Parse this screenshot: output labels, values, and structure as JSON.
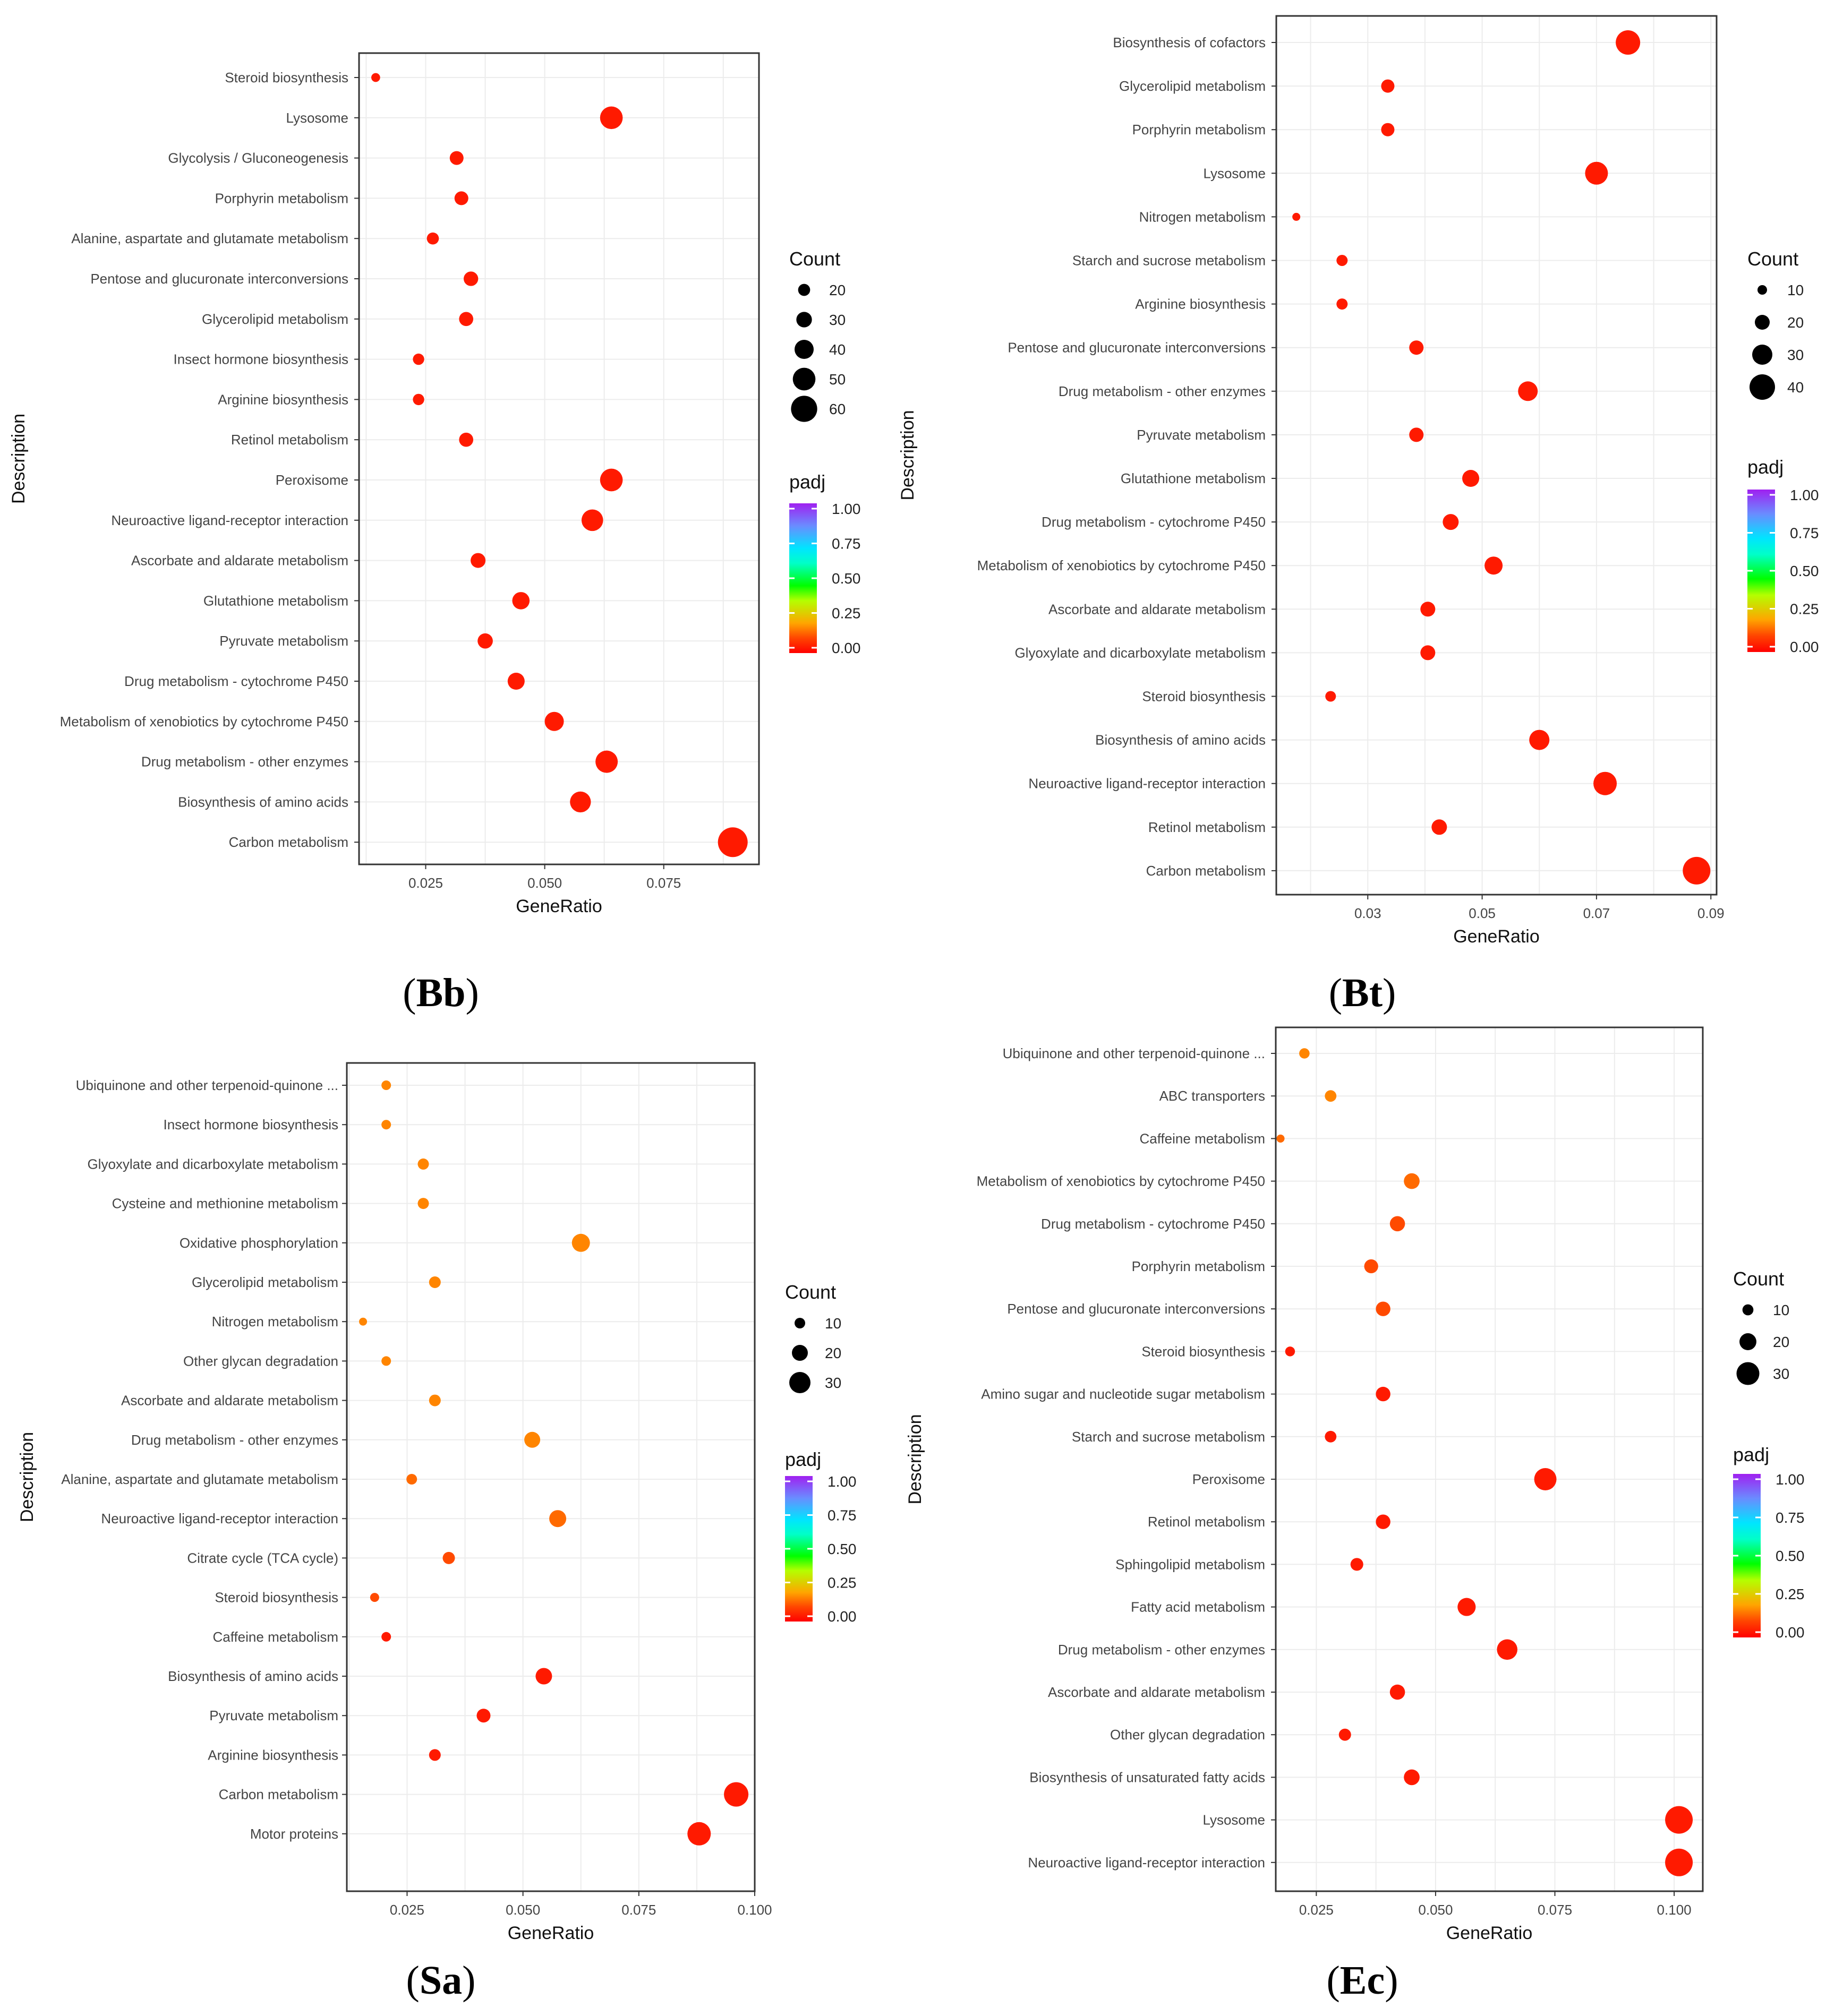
{
  "figure": {
    "xlabel": "GeneRatio",
    "ylabel": "Description",
    "count_legend_title": "Count",
    "padj_legend_title": "padj",
    "padj_ticks": [
      "1.00",
      "0.75",
      "0.50",
      "0.25",
      "0.00"
    ],
    "colors": {
      "low_padj": "#ff0000",
      "mid_padj": "#ff7a00",
      "grid": "#ebebeb",
      "border": "#333333"
    }
  },
  "chart_data": [
    {
      "id": "Bb",
      "type": "scatter",
      "label": "Bb",
      "xlabel": "GeneRatio",
      "ylabel": "Description",
      "xlim": [
        0.011,
        0.095
      ],
      "xticks": [
        "0.025",
        "0.050",
        "0.075"
      ],
      "xtick_values": [
        0.025,
        0.05,
        0.075
      ],
      "count_legend": [
        20,
        30,
        40,
        50,
        60
      ],
      "count_range": [
        10,
        70
      ],
      "padj_legend": [
        "1.00",
        "0.75",
        "0.50",
        "0.25",
        "0.00"
      ],
      "points": [
        {
          "term": "Steroid biosynthesis",
          "gene_ratio": 0.0145,
          "count": 11,
          "padj": 0.01
        },
        {
          "term": "Lysosome",
          "gene_ratio": 0.064,
          "count": 50,
          "padj": 0.01
        },
        {
          "term": "Glycolysis / Gluconeogenesis",
          "gene_ratio": 0.0315,
          "count": 25,
          "padj": 0.01
        },
        {
          "term": "Porphyrin metabolism",
          "gene_ratio": 0.0325,
          "count": 25,
          "padj": 0.01
        },
        {
          "term": "Alanine, aspartate and glutamate metabolism",
          "gene_ratio": 0.0265,
          "count": 20,
          "padj": 0.01
        },
        {
          "term": "Pentose and glucuronate interconversions",
          "gene_ratio": 0.0345,
          "count": 27,
          "padj": 0.01
        },
        {
          "term": "Glycerolipid metabolism",
          "gene_ratio": 0.0335,
          "count": 26,
          "padj": 0.01
        },
        {
          "term": "Insect hormone biosynthesis",
          "gene_ratio": 0.0235,
          "count": 18,
          "padj": 0.01
        },
        {
          "term": "Arginine biosynthesis",
          "gene_ratio": 0.0235,
          "count": 18,
          "padj": 0.01
        },
        {
          "term": "Retinol metabolism",
          "gene_ratio": 0.0335,
          "count": 26,
          "padj": 0.01
        },
        {
          "term": "Peroxisome",
          "gene_ratio": 0.064,
          "count": 50,
          "padj": 0.01
        },
        {
          "term": "Neuroactive ligand-receptor interaction",
          "gene_ratio": 0.06,
          "count": 47,
          "padj": 0.01
        },
        {
          "term": "Ascorbate and aldarate metabolism",
          "gene_ratio": 0.036,
          "count": 28,
          "padj": 0.01
        },
        {
          "term": "Glutathione metabolism",
          "gene_ratio": 0.045,
          "count": 35,
          "padj": 0.01
        },
        {
          "term": "Pyruvate metabolism",
          "gene_ratio": 0.0375,
          "count": 29,
          "padj": 0.01
        },
        {
          "term": "Drug metabolism - cytochrome P450",
          "gene_ratio": 0.044,
          "count": 34,
          "padj": 0.01
        },
        {
          "term": "Metabolism of xenobiotics by cytochrome P450",
          "gene_ratio": 0.052,
          "count": 40,
          "padj": 0.01
        },
        {
          "term": "Drug metabolism - other enzymes",
          "gene_ratio": 0.063,
          "count": 49,
          "padj": 0.01
        },
        {
          "term": "Biosynthesis of amino acids",
          "gene_ratio": 0.0575,
          "count": 45,
          "padj": 0.01
        },
        {
          "term": "Carbon metabolism",
          "gene_ratio": 0.0895,
          "count": 70,
          "padj": 0.01
        }
      ]
    },
    {
      "id": "Bt",
      "type": "scatter",
      "label": "Bt",
      "xlabel": "GeneRatio",
      "ylabel": "Description",
      "xlim": [
        0.014,
        0.091
      ],
      "xticks": [
        "0.03",
        "0.05",
        "0.07",
        "0.09"
      ],
      "xtick_values": [
        0.03,
        0.05,
        0.07,
        0.09
      ],
      "count_legend": [
        10,
        20,
        30,
        40
      ],
      "count_range": [
        6,
        44
      ],
      "padj_legend": [
        "1.00",
        "0.75",
        "0.50",
        "0.25",
        "0.00"
      ],
      "points": [
        {
          "term": "Biosynthesis of cofactors",
          "gene_ratio": 0.0755,
          "count": 38,
          "padj": 0.02
        },
        {
          "term": "Glycerolipid metabolism",
          "gene_ratio": 0.0335,
          "count": 17,
          "padj": 0.01
        },
        {
          "term": "Porphyrin metabolism",
          "gene_ratio": 0.0335,
          "count": 17,
          "padj": 0.01
        },
        {
          "term": "Lysosome",
          "gene_ratio": 0.07,
          "count": 35,
          "padj": 0.01
        },
        {
          "term": "Nitrogen metabolism",
          "gene_ratio": 0.0175,
          "count": 7,
          "padj": 0.01
        },
        {
          "term": "Starch and sucrose metabolism",
          "gene_ratio": 0.0255,
          "count": 13,
          "padj": 0.01
        },
        {
          "term": "Arginine biosynthesis",
          "gene_ratio": 0.0255,
          "count": 13,
          "padj": 0.01
        },
        {
          "term": "Pentose and glucuronate interconversions",
          "gene_ratio": 0.0385,
          "count": 19,
          "padj": 0.01
        },
        {
          "term": "Drug metabolism - other enzymes",
          "gene_ratio": 0.058,
          "count": 29,
          "padj": 0.01
        },
        {
          "term": "Pyruvate metabolism",
          "gene_ratio": 0.0385,
          "count": 19,
          "padj": 0.01
        },
        {
          "term": "Glutathione metabolism",
          "gene_ratio": 0.048,
          "count": 24,
          "padj": 0.01
        },
        {
          "term": "Drug metabolism - cytochrome P450",
          "gene_ratio": 0.0445,
          "count": 22,
          "padj": 0.01
        },
        {
          "term": "Metabolism of xenobiotics by cytochrome P450",
          "gene_ratio": 0.052,
          "count": 26,
          "padj": 0.01
        },
        {
          "term": "Ascorbate and aldarate metabolism",
          "gene_ratio": 0.0405,
          "count": 20,
          "padj": 0.01
        },
        {
          "term": "Glyoxylate and dicarboxylate metabolism",
          "gene_ratio": 0.0405,
          "count": 20,
          "padj": 0.01
        },
        {
          "term": "Steroid biosynthesis",
          "gene_ratio": 0.0235,
          "count": 12,
          "padj": 0.01
        },
        {
          "term": "Biosynthesis of amino acids",
          "gene_ratio": 0.06,
          "count": 30,
          "padj": 0.01
        },
        {
          "term": "Neuroactive ligand-receptor interaction",
          "gene_ratio": 0.0715,
          "count": 36,
          "padj": 0.01
        },
        {
          "term": "Retinol metabolism",
          "gene_ratio": 0.0425,
          "count": 21,
          "padj": 0.01
        },
        {
          "term": "Carbon metabolism",
          "gene_ratio": 0.0875,
          "count": 44,
          "padj": 0.01
        }
      ]
    },
    {
      "id": "Sa",
      "type": "scatter",
      "label": "Sa",
      "xlabel": "GeneRatio",
      "ylabel": "Description",
      "xlim": [
        0.012,
        0.1
      ],
      "xticks": [
        "0.025",
        "0.050",
        "0.075",
        "0.100"
      ],
      "xtick_values": [
        0.025,
        0.05,
        0.075,
        0.1
      ],
      "count_legend": [
        10,
        20,
        30
      ],
      "count_range": [
        4,
        36
      ],
      "padj_legend": [
        "1.00",
        "0.75",
        "0.50",
        "0.25",
        "0.00"
      ],
      "points": [
        {
          "term": "Ubiquinone and other terpenoid-quinone ...",
          "gene_ratio": 0.0205,
          "count": 8,
          "padj": 0.12
        },
        {
          "term": "Insect hormone biosynthesis",
          "gene_ratio": 0.0205,
          "count": 8,
          "padj": 0.12
        },
        {
          "term": "Glyoxylate and dicarboxylate metabolism",
          "gene_ratio": 0.0285,
          "count": 11,
          "padj": 0.12
        },
        {
          "term": "Cysteine and methionine metabolism",
          "gene_ratio": 0.0285,
          "count": 11,
          "padj": 0.12
        },
        {
          "term": "Oxidative phosphorylation",
          "gene_ratio": 0.0625,
          "count": 24,
          "padj": 0.14
        },
        {
          "term": "Glycerolipid metabolism",
          "gene_ratio": 0.031,
          "count": 12,
          "padj": 0.12
        },
        {
          "term": "Nitrogen metabolism",
          "gene_ratio": 0.0155,
          "count": 5,
          "padj": 0.12
        },
        {
          "term": "Other glycan degradation",
          "gene_ratio": 0.0205,
          "count": 8,
          "padj": 0.12
        },
        {
          "term": "Ascorbate and aldarate metabolism",
          "gene_ratio": 0.031,
          "count": 12,
          "padj": 0.12
        },
        {
          "term": "Drug metabolism - other enzymes",
          "gene_ratio": 0.052,
          "count": 20,
          "padj": 0.12
        },
        {
          "term": "Alanine, aspartate and glutamate metabolism",
          "gene_ratio": 0.026,
          "count": 10,
          "padj": 0.1
        },
        {
          "term": "Neuroactive ligand-receptor interaction",
          "gene_ratio": 0.0575,
          "count": 22,
          "padj": 0.1
        },
        {
          "term": "Citrate cycle (TCA cycle)",
          "gene_ratio": 0.034,
          "count": 13,
          "padj": 0.04
        },
        {
          "term": "Steroid biosynthesis",
          "gene_ratio": 0.018,
          "count": 7,
          "padj": 0.04
        },
        {
          "term": "Caffeine metabolism",
          "gene_ratio": 0.0205,
          "count": 8,
          "padj": 0.02
        },
        {
          "term": "Biosynthesis of amino acids",
          "gene_ratio": 0.0545,
          "count": 21,
          "padj": 0.01
        },
        {
          "term": "Pyruvate metabolism",
          "gene_ratio": 0.0415,
          "count": 16,
          "padj": 0.01
        },
        {
          "term": "Arginine biosynthesis",
          "gene_ratio": 0.031,
          "count": 12,
          "padj": 0.01
        },
        {
          "term": "Carbon metabolism",
          "gene_ratio": 0.096,
          "count": 36,
          "padj": 0.01
        },
        {
          "term": "Motor proteins",
          "gene_ratio": 0.088,
          "count": 34,
          "padj": 0.01
        }
      ]
    },
    {
      "id": "Ec",
      "type": "scatter",
      "label": "Ec",
      "xlabel": "GeneRatio",
      "ylabel": "Description",
      "xlim": [
        0.0165,
        0.106
      ],
      "xticks": [
        "0.025",
        "0.050",
        "0.075",
        "0.100"
      ],
      "xtick_values": [
        0.025,
        0.05,
        0.075,
        0.1
      ],
      "count_legend": [
        10,
        20,
        30
      ],
      "count_range": [
        4,
        38
      ],
      "padj_legend": [
        "1.00",
        "0.75",
        "0.50",
        "0.25",
        "0.00"
      ],
      "points": [
        {
          "term": "Ubiquinone and other terpenoid-quinone ...",
          "gene_ratio": 0.0225,
          "count": 9,
          "padj": 0.14
        },
        {
          "term": "ABC transporters",
          "gene_ratio": 0.028,
          "count": 11,
          "padj": 0.14
        },
        {
          "term": "Caffeine metabolism",
          "gene_ratio": 0.0175,
          "count": 5,
          "padj": 0.1
        },
        {
          "term": "Metabolism of xenobiotics by cytochrome P450",
          "gene_ratio": 0.045,
          "count": 18,
          "padj": 0.1
        },
        {
          "term": "Drug metabolism - cytochrome P450",
          "gene_ratio": 0.042,
          "count": 17,
          "padj": 0.06
        },
        {
          "term": "Porphyrin metabolism",
          "gene_ratio": 0.0365,
          "count": 15,
          "padj": 0.04
        },
        {
          "term": "Pentose and glucuronate interconversions",
          "gene_ratio": 0.039,
          "count": 16,
          "padj": 0.04
        },
        {
          "term": "Steroid biosynthesis",
          "gene_ratio": 0.0195,
          "count": 8,
          "padj": 0.02
        },
        {
          "term": "Amino sugar and nucleotide sugar metabolism",
          "gene_ratio": 0.039,
          "count": 16,
          "padj": 0.02
        },
        {
          "term": "Starch and sucrose metabolism",
          "gene_ratio": 0.028,
          "count": 11,
          "padj": 0.02
        },
        {
          "term": "Peroxisome",
          "gene_ratio": 0.073,
          "count": 29,
          "padj": 0.01
        },
        {
          "term": "Retinol metabolism",
          "gene_ratio": 0.039,
          "count": 16,
          "padj": 0.01
        },
        {
          "term": "Sphingolipid metabolism",
          "gene_ratio": 0.0335,
          "count": 13,
          "padj": 0.01
        },
        {
          "term": "Fatty acid metabolism",
          "gene_ratio": 0.0565,
          "count": 22,
          "padj": 0.01
        },
        {
          "term": "Drug metabolism - other enzymes",
          "gene_ratio": 0.065,
          "count": 26,
          "padj": 0.01
        },
        {
          "term": "Ascorbate and aldarate metabolism",
          "gene_ratio": 0.042,
          "count": 17,
          "padj": 0.01
        },
        {
          "term": "Other glycan degradation",
          "gene_ratio": 0.031,
          "count": 12,
          "padj": 0.01
        },
        {
          "term": "Biosynthesis of unsaturated fatty acids",
          "gene_ratio": 0.045,
          "count": 18,
          "padj": 0.01
        },
        {
          "term": "Lysosome",
          "gene_ratio": 0.101,
          "count": 38,
          "padj": 0.01
        },
        {
          "term": "Neuroactive ligand-receptor interaction",
          "gene_ratio": 0.101,
          "count": 38,
          "padj": 0.01
        }
      ]
    }
  ]
}
